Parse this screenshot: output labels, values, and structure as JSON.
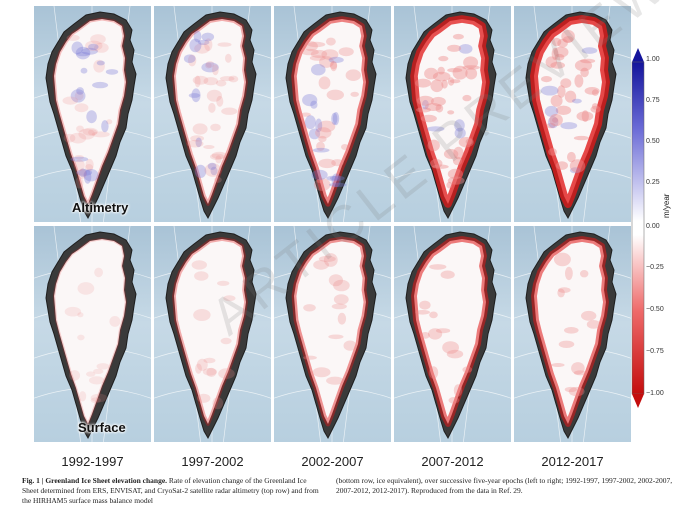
{
  "figure": {
    "row_labels": [
      "Altimetry",
      "Surface"
    ],
    "epochs": [
      "1992-1997",
      "1997-2002",
      "2002-2007",
      "2007-2012",
      "2012-2017"
    ]
  },
  "colorbar": {
    "unit": "m/year",
    "ticks": [
      "1.00",
      "0.75",
      "0.50",
      "0.25",
      "0.00",
      "−0.25",
      "−0.50",
      "−0.75",
      "−1.00"
    ],
    "colors": {
      "positive": "#1a1aa8",
      "negative": "#d21313",
      "zero": "#ffffff"
    }
  },
  "caption": {
    "fig_label": "Fig. 1 | Greenland Ice Sheet elevation change.",
    "left_text": "Rate of elevation change of the Greenland Ice Sheet determined from ERS, ENVISAT, and CryoSat-2 satellite radar altimetry (top row) and from the HIRHAM5 surface mass balance model",
    "right_text": "(bottom row, ice equivalent), over successive five-year epochs (left to right; 1992-1997, 1997-2002, 2002-2007, 2007-2012, 2012-2017). Reproduced from the data in Ref. 29."
  },
  "watermark": {
    "text": "ARTICLE PREVIEW"
  }
}
